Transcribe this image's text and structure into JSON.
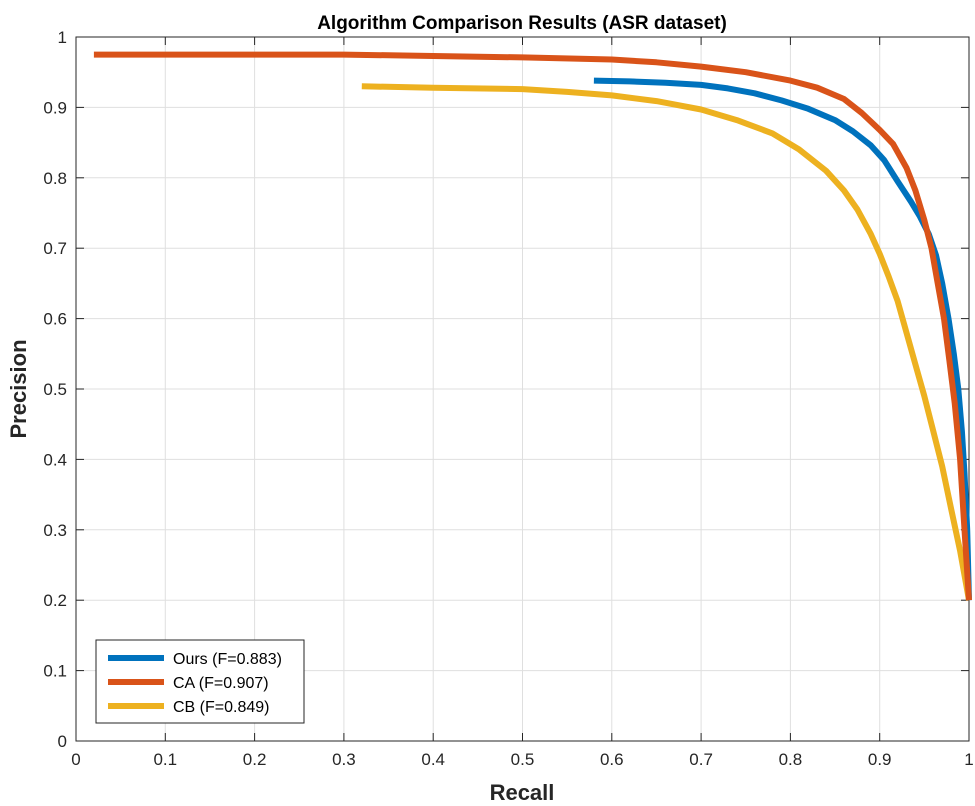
{
  "chart_data": {
    "type": "line",
    "title": "Algorithm Comparison Results (ASR dataset)",
    "xlabel": "Recall",
    "ylabel": "Precision",
    "xlim": [
      0,
      1
    ],
    "ylim": [
      0,
      1
    ],
    "xticks": [
      "0",
      "0.1",
      "0.2",
      "0.3",
      "0.4",
      "0.5",
      "0.6",
      "0.7",
      "0.8",
      "0.9",
      "1"
    ],
    "yticks": [
      "0",
      "0.1",
      "0.2",
      "0.3",
      "0.4",
      "0.5",
      "0.6",
      "0.7",
      "0.8",
      "0.9",
      "1"
    ],
    "grid": true,
    "legend_position": "bottom-left",
    "series": [
      {
        "name": "Ours (F=0.883)",
        "color": "#0072BD",
        "x": [
          0.58,
          0.62,
          0.66,
          0.7,
          0.73,
          0.76,
          0.79,
          0.82,
          0.85,
          0.87,
          0.89,
          0.905,
          0.92,
          0.935,
          0.945,
          0.955,
          0.963,
          0.97,
          0.977,
          0.983,
          0.988,
          0.992,
          0.995,
          0.998,
          1.0
        ],
        "y": [
          0.938,
          0.937,
          0.935,
          0.932,
          0.927,
          0.92,
          0.91,
          0.898,
          0.882,
          0.866,
          0.846,
          0.825,
          0.795,
          0.766,
          0.745,
          0.72,
          0.69,
          0.65,
          0.6,
          0.55,
          0.5,
          0.44,
          0.38,
          0.3,
          0.2
        ]
      },
      {
        "name": "CA (F=0.907)",
        "color": "#D95319",
        "x": [
          0.02,
          0.1,
          0.2,
          0.3,
          0.4,
          0.5,
          0.6,
          0.65,
          0.7,
          0.75,
          0.8,
          0.83,
          0.86,
          0.88,
          0.9,
          0.915,
          0.93,
          0.94,
          0.95,
          0.958,
          0.965,
          0.972,
          0.978,
          0.984,
          0.99,
          0.995,
          1.0
        ],
        "y": [
          0.975,
          0.975,
          0.975,
          0.975,
          0.973,
          0.971,
          0.968,
          0.964,
          0.958,
          0.95,
          0.938,
          0.928,
          0.912,
          0.892,
          0.868,
          0.848,
          0.814,
          0.782,
          0.74,
          0.7,
          0.65,
          0.6,
          0.54,
          0.48,
          0.4,
          0.3,
          0.2
        ]
      },
      {
        "name": "CB (F=0.849)",
        "color": "#EDB120",
        "x": [
          0.32,
          0.4,
          0.5,
          0.55,
          0.6,
          0.65,
          0.7,
          0.74,
          0.78,
          0.81,
          0.84,
          0.86,
          0.875,
          0.89,
          0.9,
          0.91,
          0.92,
          0.93,
          0.94,
          0.95,
          0.96,
          0.97,
          0.98,
          0.99,
          1.0
        ],
        "y": [
          0.93,
          0.928,
          0.926,
          0.922,
          0.917,
          0.909,
          0.897,
          0.882,
          0.863,
          0.84,
          0.81,
          0.782,
          0.755,
          0.72,
          0.692,
          0.66,
          0.625,
          0.58,
          0.535,
          0.49,
          0.44,
          0.39,
          0.33,
          0.27,
          0.2
        ]
      }
    ]
  }
}
